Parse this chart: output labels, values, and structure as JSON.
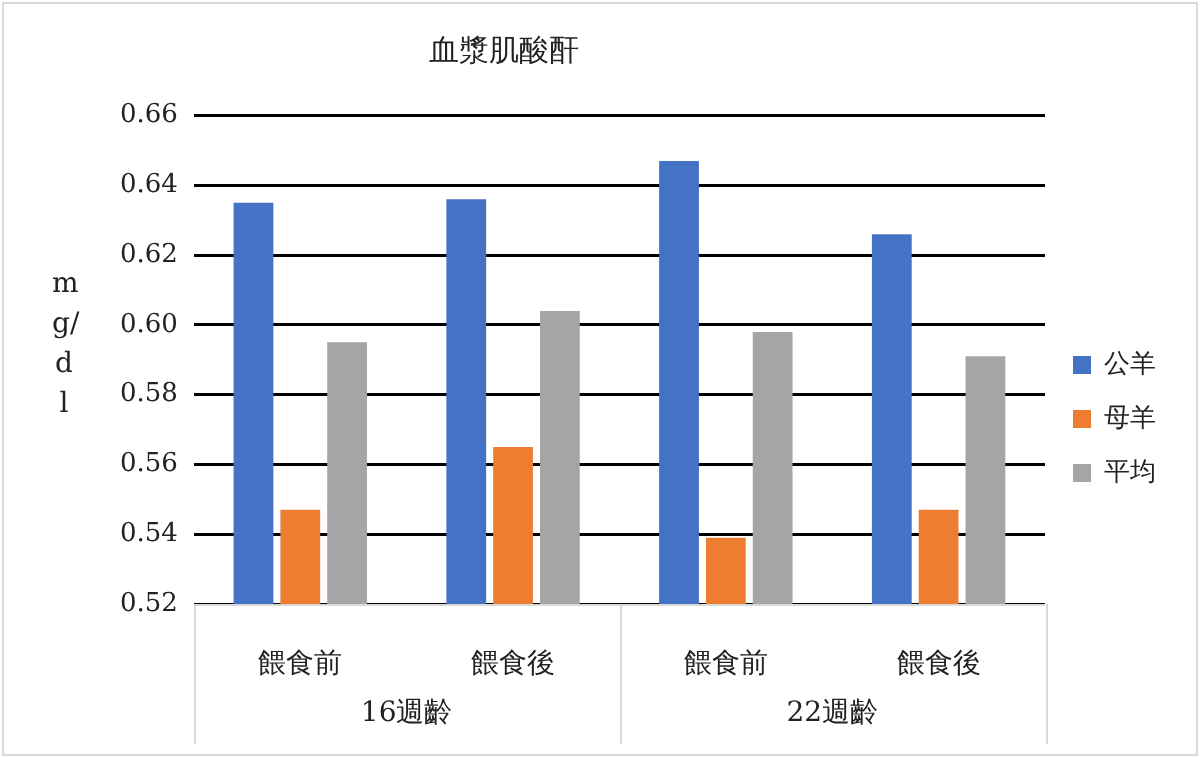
{
  "chart_data": {
    "type": "bar",
    "title": "血漿肌酸酐",
    "ylabel": "mg/dl",
    "categories": [
      "餵食前",
      "餵食後",
      "餵食前",
      "餵食後"
    ],
    "annotations": [
      "16週齡",
      "22週齡"
    ],
    "series": [
      {
        "name": "公羊",
        "color": "#4472c4",
        "values": [
          0.635,
          0.636,
          0.647,
          0.626
        ]
      },
      {
        "name": "母羊",
        "color": "#ed7d31",
        "values": [
          0.547,
          0.565,
          0.539,
          0.547
        ]
      },
      {
        "name": "平均",
        "color": "#a5a5a5",
        "values": [
          0.595,
          0.604,
          0.598,
          0.591
        ]
      }
    ],
    "ylim": [
      0.52,
      0.66
    ],
    "yticks": [
      {
        "value": 0.52,
        "label": "0.52"
      },
      {
        "value": 0.54,
        "label": "0.54"
      },
      {
        "value": 0.56,
        "label": "0.56"
      },
      {
        "value": 0.58,
        "label": "0.58"
      },
      {
        "value": 0.6,
        "label": "0.60"
      },
      {
        "value": 0.62,
        "label": "0.62"
      },
      {
        "value": 0.64,
        "label": "0.64"
      },
      {
        "value": 0.66,
        "label": "0.66"
      }
    ],
    "grid": "y",
    "legend": "right"
  }
}
